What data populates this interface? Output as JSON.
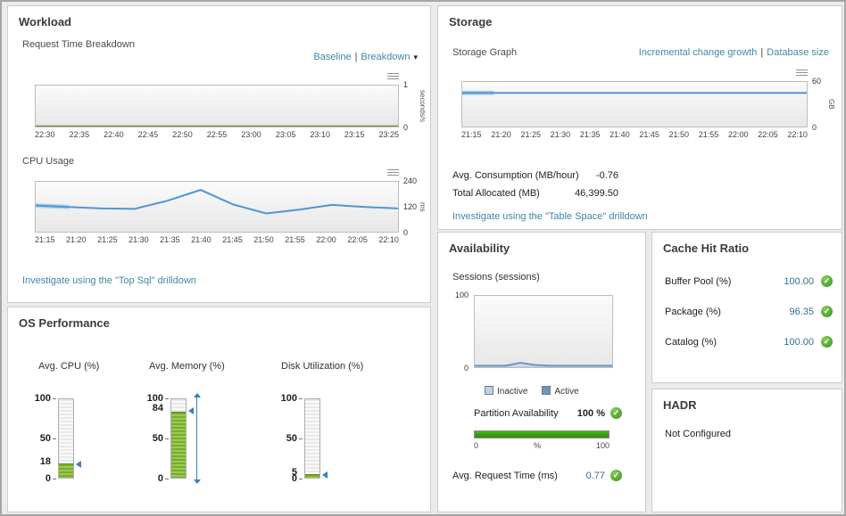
{
  "colors": {
    "link": "#3e87a8",
    "chart_line_blue": "#4e95d9",
    "chart_line_olive": "#7c8437",
    "baseline_blue": "#aed2ec",
    "gauge_green": "#79ad27",
    "bar_green": "#3f9c12",
    "status_green": "#46a636",
    "marker_blue": "#3a7ec2"
  },
  "workload": {
    "title": "Workload",
    "request_time_subtitle": "Request Time Breakdown",
    "baseline_link": "Baseline",
    "link_separator": "|",
    "breakdown_link": "Breakdown",
    "cpu_subtitle": "CPU Usage",
    "investigate_link": "Investigate using the \"Top Sql\" drilldown"
  },
  "os_performance": {
    "title": "OS Performance",
    "gauges": [
      {
        "label": "Avg. CPU (%)",
        "value": 18,
        "max": 100,
        "ticks": [
          100,
          50,
          0
        ],
        "range_line": false
      },
      {
        "label": "Avg. Memory (%)",
        "value": 84,
        "max": 100,
        "ticks": [
          100,
          50,
          0
        ],
        "range_line": true
      },
      {
        "label": "Disk Utilization (%)",
        "value": 5,
        "max": 100,
        "ticks": [
          100,
          50,
          0
        ],
        "range_line": false
      }
    ]
  },
  "storage": {
    "title": "Storage",
    "subtitle": "Storage Graph",
    "incremental_link": "Incremental change growth",
    "link_separator": "|",
    "database_link": "Database size",
    "stats": [
      {
        "label": "Avg. Consumption (MB/hour)",
        "value": "-0.76"
      },
      {
        "label": "Total Allocated (MB)",
        "value": "46,399.50"
      }
    ],
    "investigate_link": "Investigate using the \"Table Space\" drilldown"
  },
  "availability": {
    "title": "Availability",
    "sessions_label": "Sessions (sessions)",
    "legend": [
      {
        "label": "Inactive",
        "color": "#b9d3ea"
      },
      {
        "label": "Active",
        "color": "#6b96c2"
      }
    ],
    "partition": {
      "label": "Partition Availability",
      "value": "100 %",
      "scale": [
        "0",
        "%",
        "100"
      ]
    },
    "request_time": {
      "label": "Avg. Request Time (ms)",
      "value": "0.77"
    }
  },
  "cache_hit_ratio": {
    "title": "Cache Hit Ratio",
    "metrics": [
      {
        "label": "Buffer Pool (%)",
        "value": "100.00"
      },
      {
        "label": "Package (%)",
        "value": "96.35"
      },
      {
        "label": "Catalog (%)",
        "value": "100.00"
      }
    ]
  },
  "hadr": {
    "title": "HADR",
    "status": "Not Configured"
  },
  "chart_data": [
    {
      "id": "request-time-breakdown",
      "type": "line",
      "title": "Request Time Breakdown",
      "x": [
        "22:30",
        "22:35",
        "22:40",
        "22:45",
        "22:50",
        "22:55",
        "23:00",
        "23:05",
        "23:10",
        "23:15",
        "23:25"
      ],
      "values": [
        0.01,
        0.01,
        0.01,
        0.01,
        0.01,
        0.01,
        0.01,
        0.01,
        0.01,
        0.01,
        0.01
      ],
      "color": "#7c8437",
      "stroke": 1.5,
      "ylim": [
        0,
        1
      ],
      "yticks": [
        1,
        0
      ],
      "ylabel": "seconds/s",
      "yside": "right"
    },
    {
      "id": "cpu-usage",
      "type": "line",
      "title": "CPU Usage",
      "x": [
        "21:15",
        "21:20",
        "21:25",
        "21:30",
        "21:35",
        "21:40",
        "21:45",
        "21:50",
        "21:55",
        "22:00",
        "22:05",
        "22:10"
      ],
      "values": [
        126,
        119,
        112,
        110,
        149,
        201,
        131,
        88,
        106,
        129,
        119,
        112
      ],
      "color": "#4e95d9",
      "stroke": 2,
      "ylim": [
        0,
        240
      ],
      "yticks": [
        240,
        120,
        0
      ],
      "ylabel": "ms",
      "yside": "right",
      "baseline": {
        "end_index": 1,
        "color": "#aed2ec",
        "width": 5
      }
    },
    {
      "id": "storage-graph",
      "type": "line",
      "title": "Storage Graph",
      "x": [
        "21:15",
        "21:20",
        "21:25",
        "21:30",
        "21:35",
        "21:40",
        "21:45",
        "21:50",
        "21:55",
        "22:00",
        "22:05",
        "22:10"
      ],
      "values": [
        45.3,
        45.3,
        45.3,
        45.3,
        45.3,
        45.3,
        45.3,
        45.3,
        45.3,
        45.3,
        45.3,
        45.3
      ],
      "color": "#4e95d9",
      "stroke": 2,
      "ylim": [
        0,
        60
      ],
      "yticks": [
        60,
        0
      ],
      "ylabel": "GB",
      "yside": "right",
      "baseline": {
        "end_index": 1,
        "color": "#aed2ec",
        "width": 5
      }
    },
    {
      "id": "sessions",
      "type": "line",
      "title": "Sessions (sessions)",
      "x": [],
      "series": [
        {
          "name": "Inactive",
          "values": [
            1,
            1,
            1,
            1,
            1,
            1,
            1,
            1,
            1,
            1
          ],
          "color": "#b9d3ea",
          "width": 2
        },
        {
          "name": "Active",
          "values": [
            2,
            2,
            2,
            6,
            3,
            2,
            2,
            2,
            2,
            2
          ],
          "color": "#6b96c2",
          "width": 2
        }
      ],
      "ylim": [
        0,
        100
      ],
      "yticks": [
        100,
        0
      ],
      "yside": "left"
    }
  ]
}
